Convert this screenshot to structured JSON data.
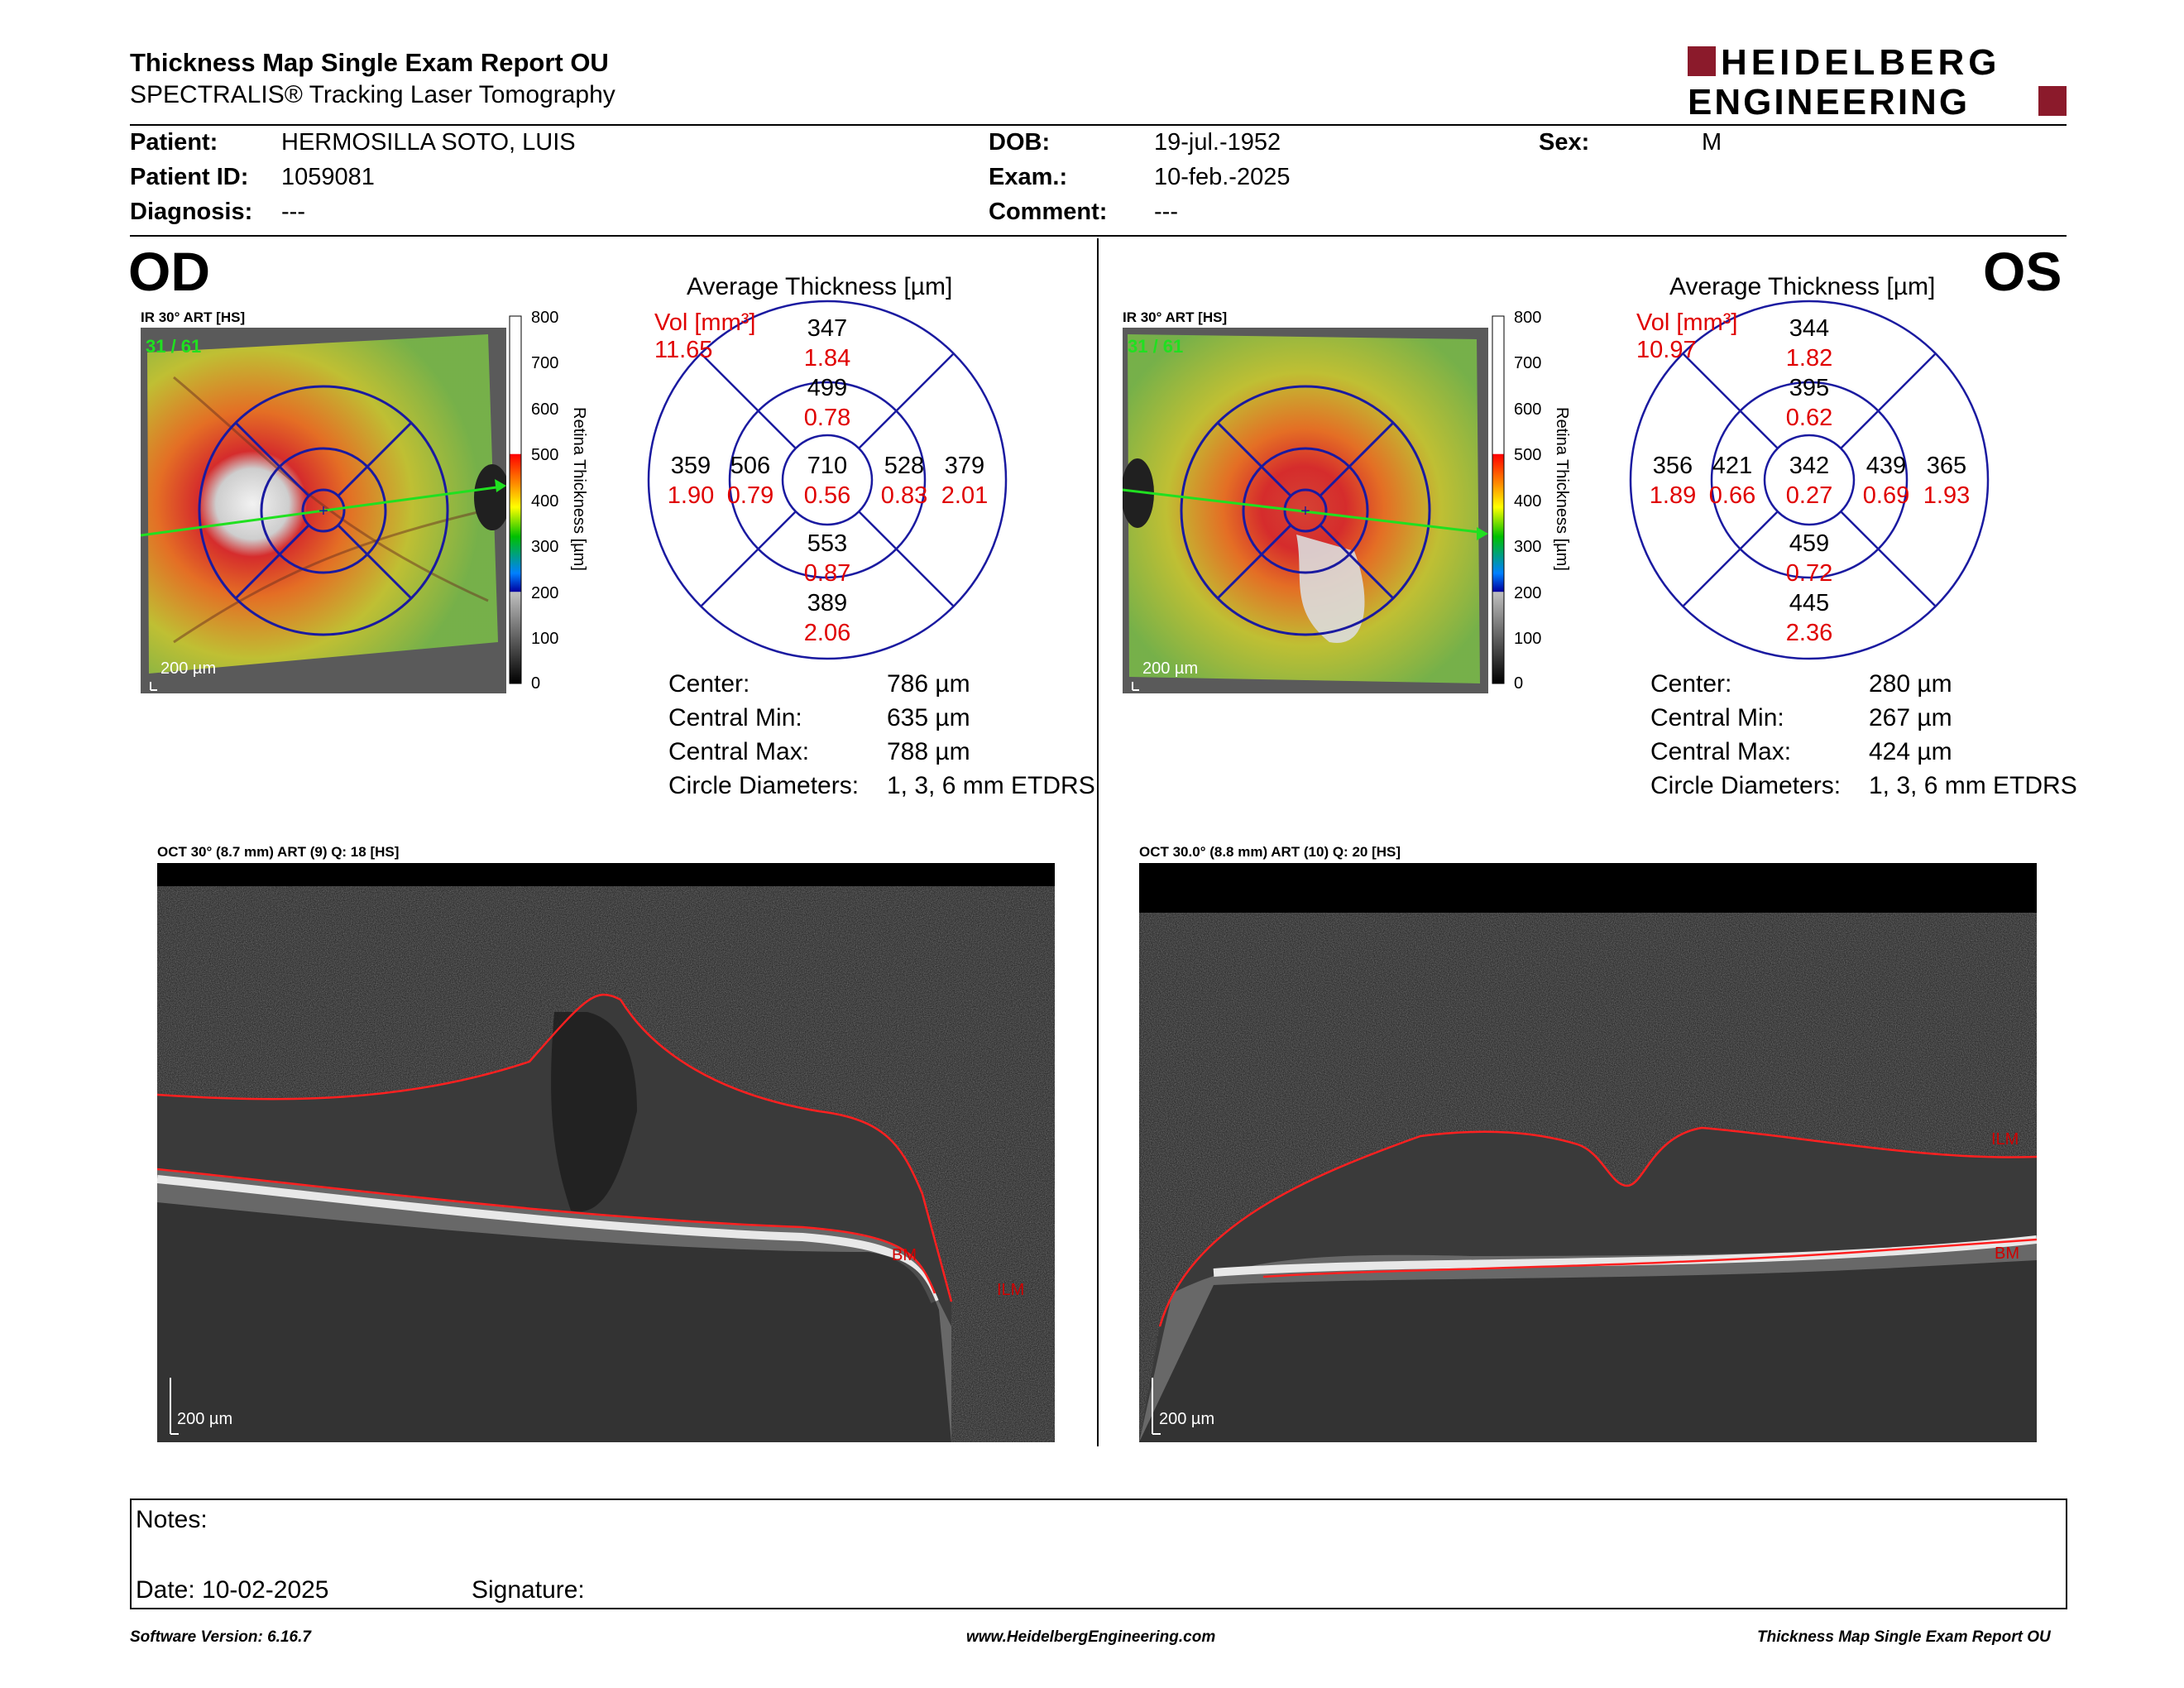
{
  "report": {
    "title": "Thickness Map Single Exam Report OU",
    "subtitle": "SPECTRALIS® Tracking Laser Tomography",
    "logo_line1": "HEIDELBERG",
    "logo_line2": "ENGINEERING"
  },
  "patient": {
    "patient_label": "Patient:",
    "patient_value": "HERMOSILLA SOTO, LUIS",
    "id_label": "Patient ID:",
    "id_value": "1059081",
    "diagnosis_label": "Diagnosis:",
    "diagnosis_value": "---",
    "dob_label": "DOB:",
    "dob_value": "19-jul.-1952",
    "exam_label": "Exam.:",
    "exam_value": "10-feb.-2025",
    "comment_label": "Comment:",
    "comment_value": "---",
    "sex_label": "Sex:",
    "sex_value": "M"
  },
  "colorbar": {
    "ticks": [
      "800",
      "700",
      "600",
      "500",
      "400",
      "300",
      "200",
      "100",
      "0"
    ],
    "label": "Retina Thickness [µm]"
  },
  "od": {
    "eye": "OD",
    "ir_title": "IR 30° ART [HS]",
    "frames": "31 / 61",
    "scale": "200 µm",
    "avg_title": "Average Thickness [µm]",
    "vol_label": "Vol [mm³]",
    "vol_total": "11.65",
    "grid": {
      "outer_sup": "347",
      "outer_sup_vol": "1.84",
      "inner_sup": "499",
      "inner_sup_vol": "0.78",
      "outer_left": "359",
      "outer_left_vol": "1.90",
      "inner_left": "506",
      "inner_left_vol": "0.79",
      "center": "710",
      "center_vol": "0.56",
      "inner_right": "528",
      "inner_right_vol": "0.83",
      "outer_right": "379",
      "outer_right_vol": "2.01",
      "inner_inf": "553",
      "inner_inf_vol": "0.87",
      "outer_inf": "389",
      "outer_inf_vol": "2.06"
    },
    "stats": {
      "center_label": "Center:",
      "center_value": "786 µm",
      "min_label": "Central Min:",
      "min_value": "635 µm",
      "max_label": "Central Max:",
      "max_value": "788 µm",
      "diam_label": "Circle Diameters:",
      "diam_value": "1, 3, 6 mm ETDRS"
    },
    "oct_title": "OCT 30° (8.7 mm) ART (9) Q: 18 [HS]",
    "oct_scale": "200 µm",
    "oct_labels": {
      "bm": "BM",
      "ilm": "ILM"
    }
  },
  "os": {
    "eye": "OS",
    "ir_title": "IR 30° ART [HS]",
    "frames": "31 / 61",
    "scale": "200 µm",
    "avg_title": "Average Thickness [µm]",
    "vol_label": "Vol [mm³]",
    "vol_total": "10.97",
    "grid": {
      "outer_sup": "344",
      "outer_sup_vol": "1.82",
      "inner_sup": "395",
      "inner_sup_vol": "0.62",
      "outer_left": "356",
      "outer_left_vol": "1.89",
      "inner_left": "421",
      "inner_left_vol": "0.66",
      "center": "342",
      "center_vol": "0.27",
      "inner_right": "439",
      "inner_right_vol": "0.69",
      "outer_right": "365",
      "outer_right_vol": "1.93",
      "inner_inf": "459",
      "inner_inf_vol": "0.72",
      "outer_inf": "445",
      "outer_inf_vol": "2.36"
    },
    "stats": {
      "center_label": "Center:",
      "center_value": "280 µm",
      "min_label": "Central Min:",
      "min_value": "267 µm",
      "max_label": "Central Max:",
      "max_value": "424 µm",
      "diam_label": "Circle Diameters:",
      "diam_value": "1, 3, 6 mm ETDRS"
    },
    "oct_title": "OCT 30.0° (8.8 mm) ART (10) Q: 20 [HS]",
    "oct_scale": "200 µm",
    "oct_labels": {
      "bm": "BM",
      "ilm": "ILM"
    }
  },
  "notes": {
    "notes_label": "Notes:",
    "date_label": "Date: 10-02-2025",
    "signature_label": "Signature:"
  },
  "footer": {
    "software": "Software Version: 6.16.7",
    "website": "www.HeidelbergEngineering.com",
    "report_name": "Thickness Map Single Exam Report OU"
  },
  "colors": {
    "accent_red": "#e00000",
    "grid_blue": "#1a1aa0",
    "brand_maroon": "#8b1a2b"
  }
}
